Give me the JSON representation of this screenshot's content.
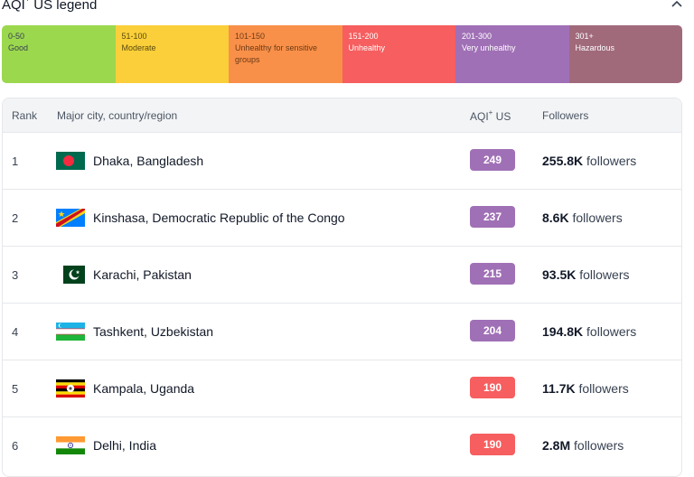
{
  "legend": {
    "title": "AQI",
    "title_sup": "+",
    "title_suffix": " US legend",
    "segments": [
      {
        "range": "0-50",
        "label": "Good",
        "color": "#9cd84e",
        "text_color": "#374151"
      },
      {
        "range": "51-100",
        "label": "Moderate",
        "color": "#facf39",
        "text_color": "#5b4a12"
      },
      {
        "range": "101-150",
        "label": "Unhealthy for sensitive groups",
        "color": "#f99049",
        "text_color": "#6b3a16"
      },
      {
        "range": "151-200",
        "label": "Unhealthy",
        "color": "#f65e5f",
        "text_color": "#ffffff"
      },
      {
        "range": "201-300",
        "label": "Very unhealthy",
        "color": "#a070b6",
        "text_color": "#ffffff"
      },
      {
        "range": "301+",
        "label": "Hazardous",
        "color": "#a06a7b",
        "text_color": "#ffffff"
      }
    ]
  },
  "table": {
    "headers": {
      "rank": "Rank",
      "city": "Major city, country/region",
      "aqi": "AQI",
      "aqi_sup": "+",
      "aqi_suffix": " US",
      "followers": "Followers"
    },
    "rows": [
      {
        "rank": "1",
        "city": "Dhaka, Bangladesh",
        "flag": "bangladesh-flag-icon",
        "aqi": "249",
        "aqi_color": "#a070b6",
        "followers_num": "255.8K",
        "followers_label": " followers"
      },
      {
        "rank": "2",
        "city": "Kinshasa, Democratic Republic of the Congo",
        "flag": "drc-flag-icon",
        "aqi": "237",
        "aqi_color": "#a070b6",
        "followers_num": "8.6K",
        "followers_label": " followers"
      },
      {
        "rank": "3",
        "city": "Karachi, Pakistan",
        "flag": "pakistan-flag-icon",
        "aqi": "215",
        "aqi_color": "#a070b6",
        "followers_num": "93.5K",
        "followers_label": " followers"
      },
      {
        "rank": "4",
        "city": "Tashkent, Uzbekistan",
        "flag": "uzbekistan-flag-icon",
        "aqi": "204",
        "aqi_color": "#a070b6",
        "followers_num": "194.8K",
        "followers_label": " followers"
      },
      {
        "rank": "5",
        "city": "Kampala, Uganda",
        "flag": "uganda-flag-icon",
        "aqi": "190",
        "aqi_color": "#f65e5f",
        "followers_num": "11.7K",
        "followers_label": " followers"
      },
      {
        "rank": "6",
        "city": "Delhi, India",
        "flag": "india-flag-icon",
        "aqi": "190",
        "aqi_color": "#f65e5f",
        "followers_num": "2.8M",
        "followers_label": " followers"
      }
    ]
  }
}
